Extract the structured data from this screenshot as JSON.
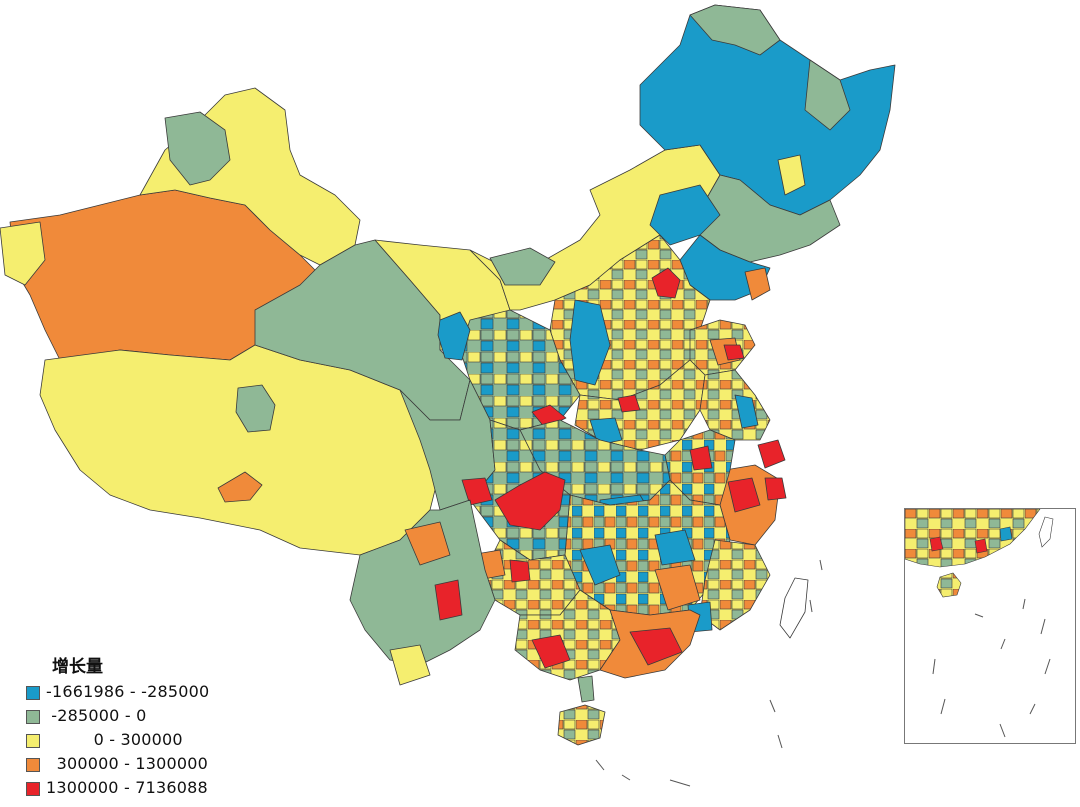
{
  "legend": {
    "title": "增长量",
    "items": [
      {
        "label": "-1661986 - -285000",
        "color": "#1a9bc9"
      },
      {
        "label": " -285000 - 0",
        "color": "#8fb896"
      },
      {
        "label": "         0 - 300000",
        "color": "#f5ee6f"
      },
      {
        "label": "  300000 - 1300000",
        "color": "#f08a3a"
      },
      {
        "label": "1300000 - 7136088",
        "color": "#e8232a"
      }
    ]
  },
  "colors": {
    "decline_large": "#1a9bc9",
    "decline_small": "#8fb896",
    "growth_small": "#f5ee6f",
    "growth_medium": "#f08a3a",
    "growth_large": "#e8232a",
    "border": "#3a3a3a"
  }
}
